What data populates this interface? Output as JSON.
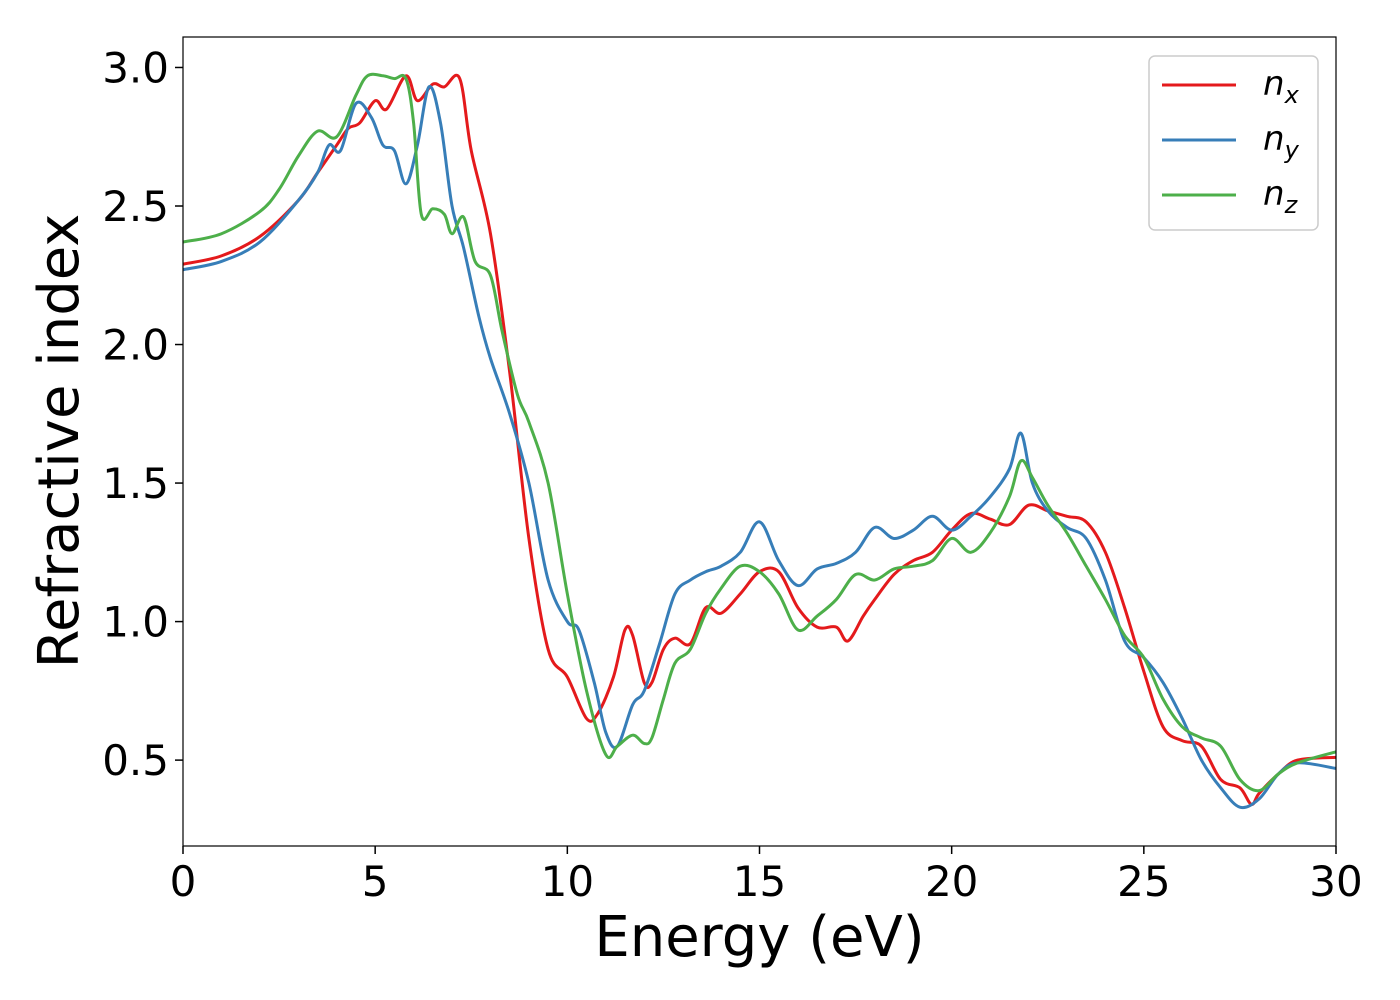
{
  "chart_data": {
    "type": "line",
    "title": "",
    "xlabel": "Energy (eV)",
    "ylabel": "Refractive index",
    "xlim": [
      0,
      30
    ],
    "ylim": [
      0.19,
      3.11
    ],
    "xticks": [
      0,
      5,
      10,
      15,
      20,
      25,
      30
    ],
    "xtick_labels": [
      "0",
      "5",
      "10",
      "15",
      "20",
      "25",
      "30"
    ],
    "yticks": [
      0.5,
      1.0,
      1.5,
      2.0,
      2.5,
      3.0
    ],
    "ytick_labels": [
      "0.5",
      "1.0",
      "1.5",
      "2.0",
      "2.5",
      "3.0"
    ],
    "grid": false,
    "legend_position": "top-right",
    "series": [
      {
        "name": "n_x",
        "label_base": "n",
        "label_sub": "x",
        "color": "#e41a1c",
        "x": [
          0,
          1,
          2,
          3,
          3.5,
          4,
          4.3,
          4.6,
          5,
          5.3,
          5.8,
          6.1,
          6.5,
          6.8,
          7.2,
          7.5,
          8,
          8.5,
          9,
          9.5,
          10,
          10.5,
          10.8,
          11.2,
          11.5,
          11.7,
          12,
          12.2,
          12.5,
          12.8,
          13.2,
          13.6,
          14,
          14.5,
          15,
          15.5,
          16,
          16.5,
          17,
          17.3,
          17.7,
          18,
          18.5,
          19,
          19.5,
          20,
          20.5,
          21,
          21.5,
          22,
          22.5,
          23,
          23.5,
          24,
          24.5,
          25,
          25.5,
          26,
          26.5,
          27,
          27.5,
          27.8,
          28,
          28.5,
          29,
          30
        ],
        "y": [
          2.29,
          2.32,
          2.39,
          2.52,
          2.62,
          2.72,
          2.78,
          2.8,
          2.88,
          2.85,
          2.97,
          2.88,
          2.94,
          2.93,
          2.96,
          2.7,
          2.4,
          1.9,
          1.3,
          0.9,
          0.8,
          0.65,
          0.67,
          0.8,
          0.97,
          0.95,
          0.78,
          0.78,
          0.9,
          0.94,
          0.92,
          1.05,
          1.03,
          1.1,
          1.18,
          1.18,
          1.05,
          0.98,
          0.98,
          0.93,
          1.02,
          1.08,
          1.17,
          1.22,
          1.25,
          1.33,
          1.39,
          1.37,
          1.35,
          1.42,
          1.4,
          1.38,
          1.36,
          1.25,
          1.05,
          0.82,
          0.62,
          0.57,
          0.55,
          0.43,
          0.4,
          0.34,
          0.38,
          0.45,
          0.5,
          0.51
        ]
      },
      {
        "name": "n_y",
        "label_base": "n",
        "label_sub": "y",
        "color": "#377eb8",
        "x": [
          0,
          1,
          2,
          3,
          3.5,
          3.8,
          4.1,
          4.5,
          4.9,
          5.2,
          5.5,
          5.8,
          6.1,
          6.4,
          6.7,
          7,
          7.3,
          7.7,
          8,
          8.5,
          9,
          9.5,
          10,
          10.3,
          10.7,
          11,
          11.3,
          11.7,
          12,
          12.4,
          12.8,
          13.2,
          13.6,
          14,
          14.5,
          15,
          15.5,
          16,
          16.5,
          17,
          17.5,
          18,
          18.5,
          19,
          19.5,
          20,
          20.5,
          21,
          21.5,
          21.8,
          22.1,
          22.5,
          23,
          23.5,
          24,
          24.5,
          25,
          25.5,
          26,
          26.5,
          27,
          27.5,
          28,
          28.5,
          29,
          30
        ],
        "y": [
          2.27,
          2.3,
          2.37,
          2.52,
          2.62,
          2.72,
          2.7,
          2.87,
          2.82,
          2.72,
          2.7,
          2.58,
          2.72,
          2.93,
          2.8,
          2.5,
          2.35,
          2.1,
          1.95,
          1.75,
          1.5,
          1.15,
          1.0,
          0.97,
          0.78,
          0.6,
          0.55,
          0.7,
          0.75,
          0.92,
          1.1,
          1.15,
          1.18,
          1.2,
          1.25,
          1.36,
          1.22,
          1.13,
          1.19,
          1.21,
          1.25,
          1.34,
          1.3,
          1.33,
          1.38,
          1.33,
          1.38,
          1.45,
          1.55,
          1.68,
          1.5,
          1.4,
          1.34,
          1.3,
          1.15,
          0.93,
          0.87,
          0.78,
          0.65,
          0.5,
          0.4,
          0.33,
          0.36,
          0.45,
          0.49,
          0.47
        ]
      },
      {
        "name": "n_z",
        "label_base": "n",
        "label_sub": "z",
        "color": "#4daf4a",
        "x": [
          0,
          1,
          2,
          2.5,
          3,
          3.5,
          4,
          4.5,
          4.8,
          5.2,
          5.5,
          5.8,
          6,
          6.2,
          6.5,
          6.8,
          7,
          7.3,
          7.6,
          8,
          8.3,
          8.7,
          9,
          9.5,
          10,
          10.5,
          11,
          11.3,
          11.7,
          12,
          12.2,
          12.5,
          12.8,
          13.2,
          13.6,
          14,
          14.5,
          15,
          15.5,
          16,
          16.5,
          17,
          17.5,
          18,
          18.5,
          19,
          19.5,
          20,
          20.5,
          21,
          21.5,
          21.8,
          22.1,
          22.5,
          23,
          23.5,
          24,
          24.5,
          25,
          25.5,
          26,
          26.5,
          27,
          27.5,
          28,
          28.5,
          29,
          30
        ],
        "y": [
          2.37,
          2.4,
          2.48,
          2.56,
          2.68,
          2.77,
          2.75,
          2.9,
          2.97,
          2.97,
          2.96,
          2.96,
          2.8,
          2.47,
          2.49,
          2.47,
          2.4,
          2.46,
          2.3,
          2.25,
          2.05,
          1.82,
          1.72,
          1.5,
          1.1,
          0.75,
          0.52,
          0.55,
          0.59,
          0.56,
          0.58,
          0.72,
          0.85,
          0.9,
          1.03,
          1.12,
          1.2,
          1.18,
          1.1,
          0.97,
          1.02,
          1.08,
          1.17,
          1.15,
          1.19,
          1.2,
          1.22,
          1.3,
          1.25,
          1.32,
          1.45,
          1.58,
          1.52,
          1.42,
          1.32,
          1.2,
          1.08,
          0.95,
          0.87,
          0.72,
          0.62,
          0.58,
          0.55,
          0.43,
          0.39,
          0.45,
          0.49,
          0.53
        ]
      }
    ]
  }
}
